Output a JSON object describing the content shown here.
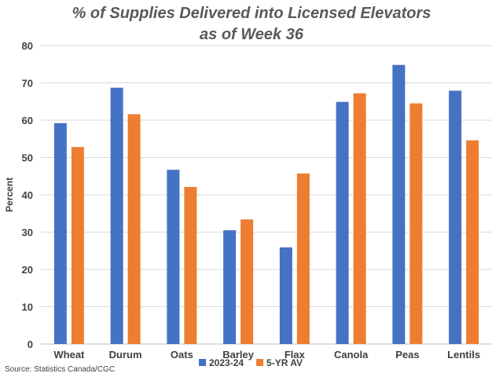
{
  "chart_data": {
    "type": "bar",
    "title": [
      "% of Supplies Delivered into Licensed Elevators",
      "as of Week 36"
    ],
    "ylabel": "Percent",
    "xlabel": "",
    "ylim": [
      0,
      80
    ],
    "yticks": [
      0,
      10,
      20,
      30,
      40,
      50,
      60,
      70,
      80
    ],
    "grid": true,
    "legend_position": "bottom",
    "categories": [
      "Wheat",
      "Durum",
      "Oats",
      "Barley",
      "Flax",
      "Canola",
      "Peas",
      "Lentils"
    ],
    "series": [
      {
        "name": "2023-24",
        "color": "#4472C4",
        "values": [
          59.2,
          68.7,
          46.7,
          30.5,
          25.9,
          64.9,
          74.8,
          67.9
        ]
      },
      {
        "name": "5-YR AV",
        "color": "#ED7D31",
        "values": [
          52.8,
          61.6,
          42.1,
          33.4,
          45.7,
          67.2,
          64.5,
          54.6
        ]
      }
    ],
    "source": "Source: Statistics Canada/CGC"
  }
}
